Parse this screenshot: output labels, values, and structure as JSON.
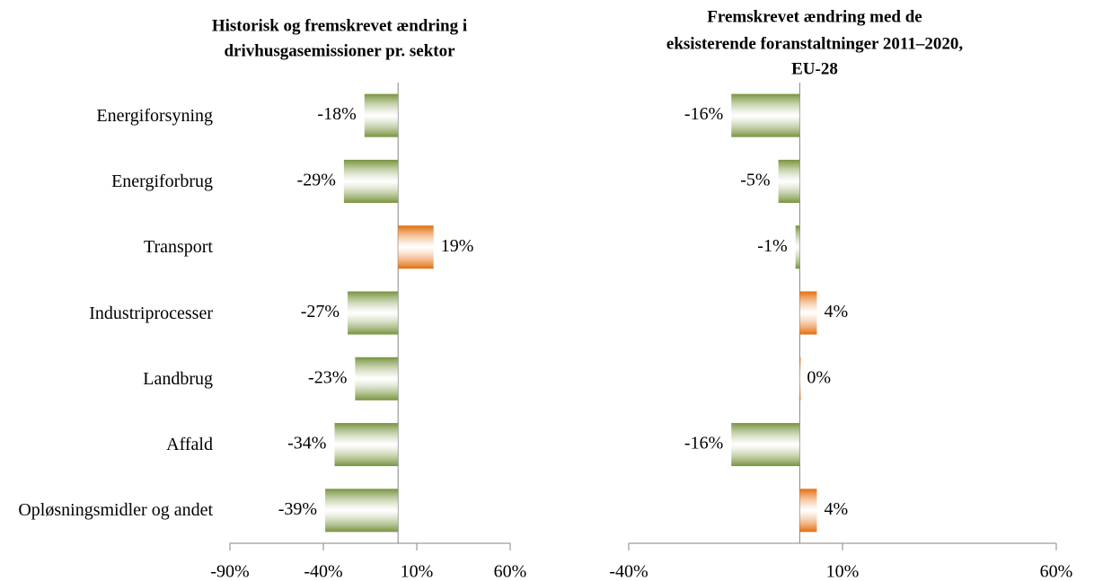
{
  "chart_data": [
    {
      "type": "barh",
      "title": [
        "Historisk og fremskrevet ændring i",
        "drivhusgasemissioner pr. sektor"
      ],
      "categories": [
        "Energiforsyning",
        "Energiforbrug",
        "Transport",
        "Industriprocesser",
        "Landbrug",
        "Affald",
        "Opløsningsmidler og andet"
      ],
      "values": [
        -18,
        -29,
        19,
        -27,
        -23,
        -34,
        -39
      ],
      "value_labels": [
        "-18%",
        "-29%",
        "19%",
        "-27%",
        "-23%",
        "-34%",
        "-39%"
      ],
      "color_negative": "#77933c",
      "color_positive": "#e46c0a",
      "xlim": [
        -90,
        60
      ],
      "xticks": [
        {
          "value": -90,
          "label": "-90%"
        },
        {
          "value": -40,
          "label": "-40%"
        },
        {
          "value": 10,
          "label": "10%"
        },
        {
          "value": 60,
          "label": "60%"
        }
      ]
    },
    {
      "type": "barh",
      "title": [
        "Fremskrevet ændring med de",
        "eksisterende foranstaltninger 2011–2020,",
        "EU-28"
      ],
      "values": [
        -16,
        -5,
        -1,
        4,
        0,
        -16,
        4
      ],
      "value_labels": [
        "-16%",
        "-5%",
        "-1%",
        "4%",
        "0%",
        "-16%",
        "4%"
      ],
      "color_negative": "#77933c",
      "color_positive": "#e46c0a",
      "xlim": [
        -40,
        60
      ],
      "xticks": [
        {
          "value": -40,
          "label": "-40%"
        },
        {
          "value": 10,
          "label": "10%"
        },
        {
          "value": 60,
          "label": "60%"
        }
      ]
    }
  ]
}
